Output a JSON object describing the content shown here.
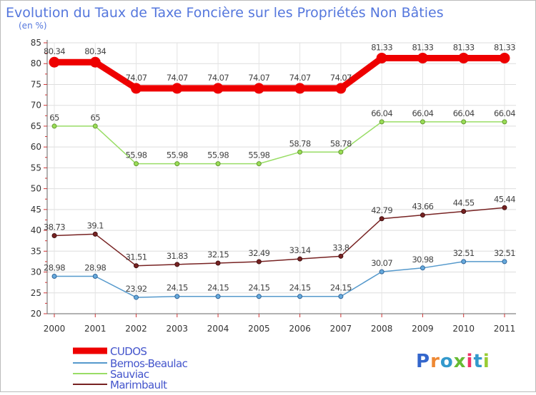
{
  "chart_data": {
    "type": "line",
    "title": "Evolution du Taux de Taxe Foncière sur les Propriétés Non Bâties",
    "ylabel": "(en %)",
    "xlabel": "",
    "ylim": [
      20,
      85
    ],
    "yticks": [
      "20",
      "25",
      "30",
      "35",
      "40",
      "45",
      "50",
      "55",
      "60",
      "65",
      "70",
      "75",
      "80",
      "85"
    ],
    "categories": [
      "2000",
      "2001",
      "2002",
      "2003",
      "2004",
      "2005",
      "2006",
      "2007",
      "2008",
      "2009",
      "2010",
      "2011"
    ],
    "grid": true,
    "legend_position": "bottom-left",
    "series": [
      {
        "name": "CUDOS",
        "color": "#ee0000",
        "values": [
          80.34,
          80.34,
          74.07,
          74.07,
          74.07,
          74.07,
          74.07,
          74.07,
          81.33,
          81.33,
          81.33,
          81.33
        ],
        "labels": [
          "80.34",
          "80.34",
          "74.07",
          "74.07",
          "74.07",
          "74.07",
          "74.07",
          "74.07",
          "81.33",
          "81.33",
          "81.33",
          "81.33"
        ]
      },
      {
        "name": "Bernos-Beaulac",
        "color": "#5599cc",
        "values": [
          28.98,
          28.98,
          23.92,
          24.15,
          24.15,
          24.15,
          24.15,
          24.15,
          30.07,
          30.98,
          32.51,
          32.51
        ],
        "labels": [
          "28.98",
          "28.98",
          "23.92",
          "24.15",
          "24.15",
          "24.15",
          "24.15",
          "24.15",
          "30.07",
          "30.98",
          "32.51",
          "32.51"
        ]
      },
      {
        "name": "Sauviac",
        "color": "#99dd66",
        "values": [
          65,
          65,
          55.98,
          55.98,
          55.98,
          55.98,
          58.78,
          58.78,
          66.04,
          66.04,
          66.04,
          66.04
        ],
        "labels": [
          "65",
          "65",
          "55.98",
          "55.98",
          "55.98",
          "55.98",
          "58.78",
          "58.78",
          "66.04",
          "66.04",
          "66.04",
          "66.04"
        ]
      },
      {
        "name": "Marimbault",
        "color": "#772222",
        "values": [
          38.73,
          39.1,
          31.51,
          31.83,
          32.15,
          32.49,
          33.14,
          33.8,
          42.79,
          43.66,
          44.55,
          45.44
        ],
        "labels": [
          "38.73",
          "39.1",
          "31.51",
          "31.83",
          "32.15",
          "32.49",
          "33.14",
          "33.8",
          "42.79",
          "43.66",
          "44.55",
          "45.44"
        ]
      }
    ]
  },
  "branding": {
    "text": "Proxiti"
  },
  "colors": {
    "title": "#5577dd",
    "axis_text": "#333333",
    "legend_text": "#4455cc",
    "grid": "#dddddd"
  }
}
